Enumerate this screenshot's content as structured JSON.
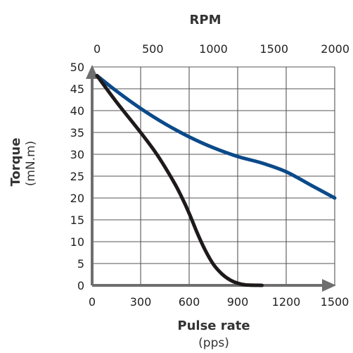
{
  "chart_data": {
    "type": "line",
    "title": "",
    "top_axis": {
      "label": "RPM",
      "range": [
        0,
        2000
      ],
      "ticks": [
        "0",
        "500",
        "1000",
        "1500",
        "2000"
      ]
    },
    "x_axis": {
      "label": "Pulse rate",
      "unit": "(pps)",
      "range": [
        0,
        1500
      ],
      "ticks": [
        "0",
        "300",
        "600",
        "900",
        "1200",
        "1500"
      ]
    },
    "y_axis": {
      "label": "Torque",
      "unit": "(mN.m)",
      "range": [
        0,
        50
      ],
      "ticks": [
        "0",
        "5",
        "10",
        "15",
        "20",
        "25",
        "30",
        "35",
        "40",
        "45",
        "50"
      ]
    },
    "grid": true,
    "legend": "none",
    "series": [
      {
        "color": "#0b4a8a",
        "x": [
          30,
          150,
          300,
          450,
          600,
          750,
          900,
          1050,
          1200,
          1350,
          1500
        ],
        "values": [
          48,
          44.5,
          40.5,
          37,
          34,
          31.5,
          29.5,
          28,
          26,
          23,
          20
        ]
      },
      {
        "color": "#1e1a1a",
        "x": [
          30,
          150,
          300,
          400,
          500,
          550,
          600,
          650,
          700,
          750,
          800,
          850,
          900,
          950,
          1050
        ],
        "values": [
          48,
          42,
          35,
          30,
          24,
          20.5,
          16.5,
          12,
          8,
          4.8,
          2.7,
          1.3,
          0.5,
          0.1,
          0
        ]
      }
    ]
  }
}
